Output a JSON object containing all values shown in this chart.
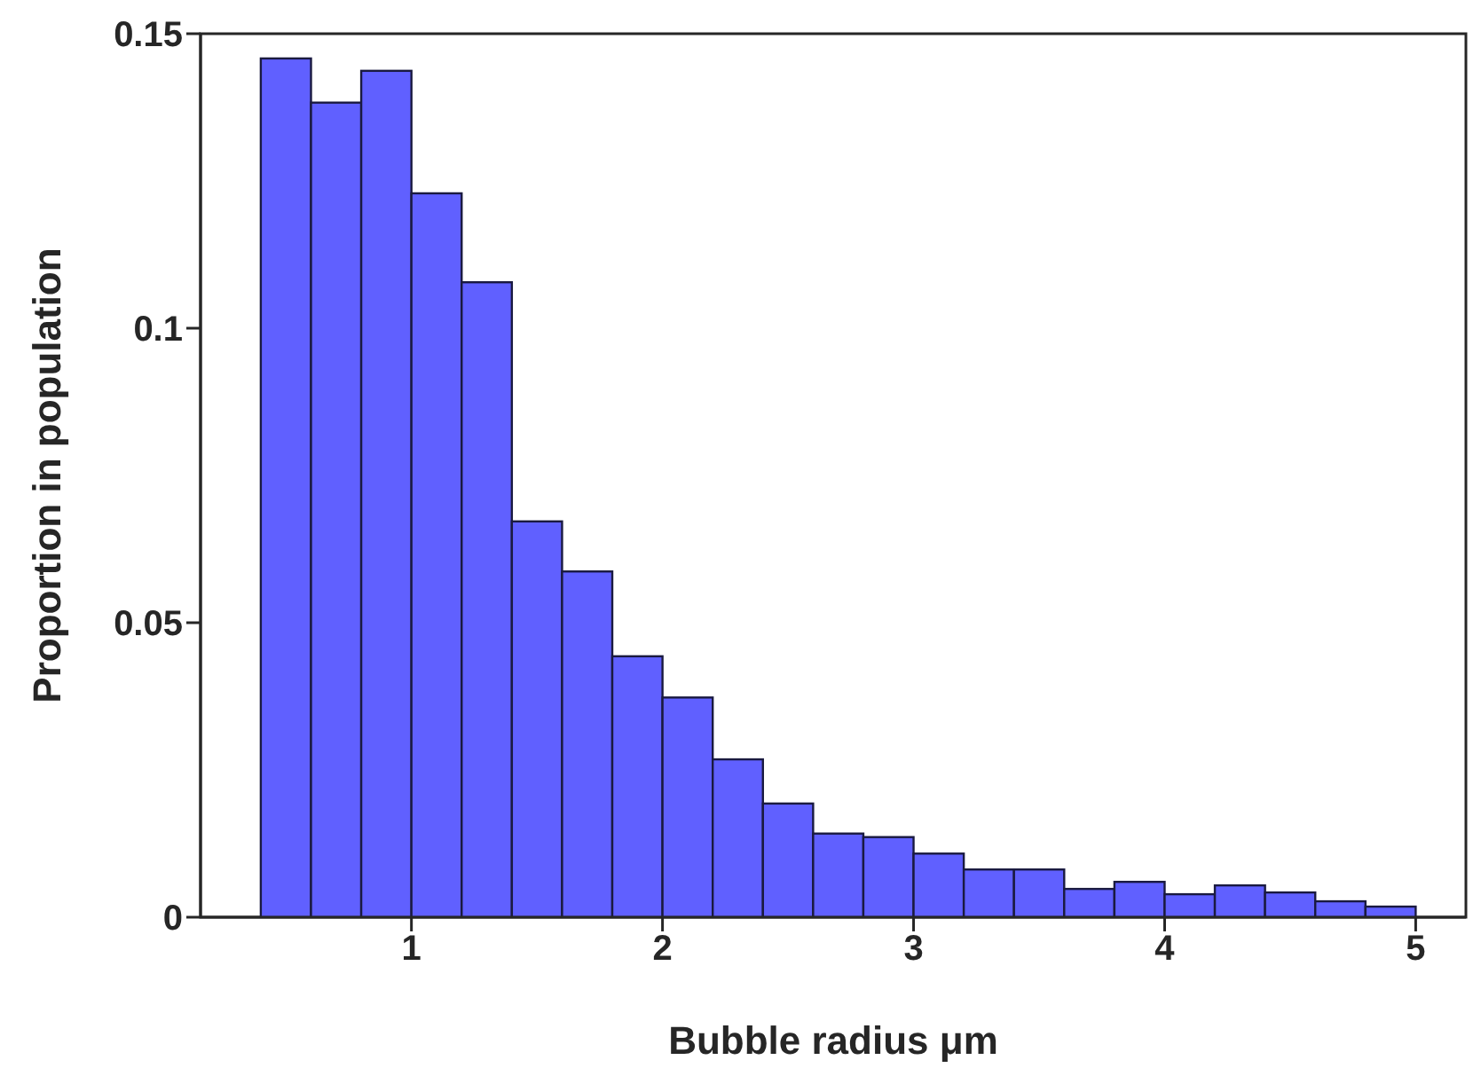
{
  "chart_data": {
    "type": "histogram",
    "xlabel": "Bubble radius μm",
    "ylabel": "Proportion in population",
    "color": "#6060ff",
    "bins": [
      0.4,
      0.6,
      0.8,
      1.0,
      1.2,
      1.4,
      1.6,
      1.8,
      2.0,
      2.2,
      2.4,
      2.6,
      2.8,
      3.0,
      3.2,
      3.4,
      3.6,
      3.8,
      4.0,
      4.2,
      4.4,
      4.6,
      4.8,
      5.0
    ],
    "values": [
      0.1458,
      0.1383,
      0.1437,
      0.1229,
      0.1078,
      0.0672,
      0.0587,
      0.0443,
      0.0373,
      0.0268,
      0.0193,
      0.0142,
      0.0136,
      0.0108,
      0.0081,
      0.0081,
      0.0048,
      0.006,
      0.0039,
      0.0054,
      0.0042,
      0.0027,
      0.0018
    ],
    "xlim": [
      0.16,
      5.2
    ],
    "xticks": [
      1,
      2,
      3,
      4,
      5
    ],
    "ylim": [
      0,
      0.15
    ],
    "yticks": [
      0,
      0.05,
      0.1,
      0.15
    ]
  }
}
